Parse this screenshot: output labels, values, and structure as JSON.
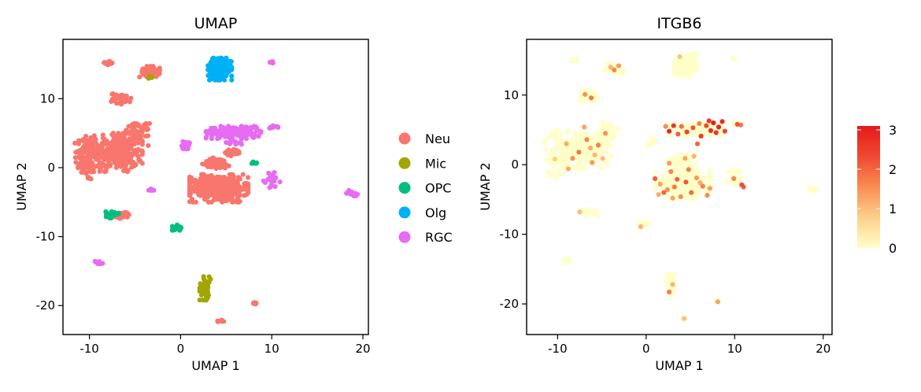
{
  "chart_data": [
    {
      "type": "scatter",
      "title": "UMAP",
      "xlabel": "UMAP 1",
      "ylabel": "UMAP 2",
      "xlim": [
        -12.9,
        20.6
      ],
      "ylim": [
        -24.2,
        18.6
      ],
      "xticks": [
        -10,
        0,
        10,
        20
      ],
      "yticks": [
        -20,
        -10,
        0,
        10
      ],
      "xtick_labels": [
        "-10",
        "0",
        "10",
        "20"
      ],
      "ytick_labels": [
        "-20",
        "-10",
        "0",
        "10"
      ],
      "grid": false,
      "legend": "right",
      "series": [
        {
          "name": "Neu",
          "color": "#F8766D",
          "clusters": [
            {
              "cx": -10.3,
              "cy": 1.5,
              "rx": 1.3,
              "ry": 3.6,
              "n": 90
            },
            {
              "cx": -7.2,
              "cy": 2.2,
              "rx": 3.0,
              "ry": 2.8,
              "n": 320
            },
            {
              "cx": -4.8,
              "cy": 4.8,
              "rx": 1.4,
              "ry": 1.6,
              "n": 80
            },
            {
              "cx": -6.5,
              "cy": 10.0,
              "rx": 1.1,
              "ry": 0.8,
              "n": 50
            },
            {
              "cx": -3.4,
              "cy": 13.9,
              "rx": 1.1,
              "ry": 0.8,
              "n": 45
            },
            {
              "cx": -8.0,
              "cy": 15.2,
              "rx": 0.5,
              "ry": 0.3,
              "n": 15
            },
            {
              "cx": 4.2,
              "cy": -3.0,
              "rx": 3.2,
              "ry": 2.0,
              "n": 420
            },
            {
              "cx": 4.0,
              "cy": 0.6,
              "rx": 1.6,
              "ry": 0.8,
              "n": 70
            },
            {
              "cx": 5.8,
              "cy": 2.2,
              "rx": 0.9,
              "ry": 0.5,
              "n": 25
            },
            {
              "cx": -6.4,
              "cy": -6.9,
              "rx": 0.9,
              "ry": 0.5,
              "n": 25
            },
            {
              "cx": 8.1,
              "cy": -19.6,
              "rx": 0.4,
              "ry": 0.2,
              "n": 8
            },
            {
              "cx": 4.4,
              "cy": -22.2,
              "rx": 0.4,
              "ry": 0.2,
              "n": 8
            }
          ]
        },
        {
          "name": "Mic",
          "color": "#A3A500",
          "clusters": [
            {
              "cx": 2.7,
              "cy": -17.5,
              "rx": 0.6,
              "ry": 1.7,
              "n": 70
            },
            {
              "cx": -3.4,
              "cy": 13.1,
              "rx": 0.3,
              "ry": 0.3,
              "n": 4
            }
          ]
        },
        {
          "name": "OPC",
          "color": "#00BF7D",
          "clusters": [
            {
              "cx": -7.5,
              "cy": -6.8,
              "rx": 0.7,
              "ry": 0.5,
              "n": 22
            },
            {
              "cx": -0.3,
              "cy": -8.7,
              "rx": 0.6,
              "ry": 0.4,
              "n": 20
            },
            {
              "cx": 8.1,
              "cy": 0.6,
              "rx": 0.3,
              "ry": 0.4,
              "n": 8
            }
          ]
        },
        {
          "name": "Olg",
          "color": "#00B0F6",
          "clusters": [
            {
              "cx": 4.3,
              "cy": 14.3,
              "rx": 1.3,
              "ry": 1.6,
              "n": 190
            }
          ]
        },
        {
          "name": "RGC",
          "color": "#E76BF3",
          "clusters": [
            {
              "cx": 5.8,
              "cy": 5.1,
              "rx": 3.0,
              "ry": 0.9,
              "n": 190
            },
            {
              "cx": 0.5,
              "cy": 3.3,
              "rx": 0.5,
              "ry": 0.6,
              "n": 22
            },
            {
              "cx": 10.2,
              "cy": 5.9,
              "rx": 0.5,
              "ry": 0.2,
              "n": 10
            },
            {
              "cx": 9.9,
              "cy": 15.3,
              "rx": 0.3,
              "ry": 0.2,
              "n": 6
            },
            {
              "cx": 10.0,
              "cy": -1.8,
              "rx": 0.9,
              "ry": 1.1,
              "n": 22
            },
            {
              "cx": 18.8,
              "cy": -3.7,
              "rx": 0.6,
              "ry": 0.4,
              "n": 15
            },
            {
              "cx": -9.0,
              "cy": -13.8,
              "rx": 0.5,
              "ry": 0.3,
              "n": 12
            },
            {
              "cx": -3.2,
              "cy": -3.2,
              "rx": 0.4,
              "ry": 0.2,
              "n": 8
            },
            {
              "cx": 5.9,
              "cy": 3.6,
              "rx": 0.9,
              "ry": 0.3,
              "n": 12
            }
          ]
        }
      ]
    },
    {
      "type": "scatter",
      "title": "ITGB6",
      "xlabel": "UMAP 1",
      "ylabel": "UMAP 2",
      "xlim": [
        -13.5,
        21.0
      ],
      "ylim": [
        -24.4,
        18.0
      ],
      "xticks": [
        -10,
        0,
        10,
        20
      ],
      "yticks": [
        -20,
        -10,
        0,
        10
      ],
      "xtick_labels": [
        "-10",
        "0",
        "10",
        "20"
      ],
      "ytick_labels": [
        "-20",
        "-10",
        "0",
        "10"
      ],
      "grid": false,
      "legend": "right",
      "colorbar": {
        "min": 0,
        "max": 3.1,
        "ticks": [
          0,
          1,
          2,
          3
        ],
        "tick_labels": [
          "0",
          "1",
          "2",
          "3"
        ],
        "colors": [
          "#FFFFC8",
          "#FDD08C",
          "#F98D52",
          "#EF4A32",
          "#E31A1C"
        ]
      },
      "background_clusters": [
        {
          "cx": -10.2,
          "cy": 1.5,
          "rx": 1.3,
          "ry": 3.4,
          "n": 60
        },
        {
          "cx": -7.0,
          "cy": 2.2,
          "rx": 3.0,
          "ry": 2.7,
          "n": 240
        },
        {
          "cx": -4.6,
          "cy": 4.7,
          "rx": 1.4,
          "ry": 1.5,
          "n": 60
        },
        {
          "cx": -6.4,
          "cy": 9.9,
          "rx": 1.1,
          "ry": 0.8,
          "n": 35
        },
        {
          "cx": -3.5,
          "cy": 13.8,
          "rx": 1.1,
          "ry": 0.8,
          "n": 35
        },
        {
          "cx": -8.0,
          "cy": 15.0,
          "rx": 0.5,
          "ry": 0.3,
          "n": 10
        },
        {
          "cx": 4.4,
          "cy": 14.3,
          "rx": 1.3,
          "ry": 1.6,
          "n": 120
        },
        {
          "cx": 5.6,
          "cy": 5.0,
          "rx": 3.0,
          "ry": 0.9,
          "n": 150
        },
        {
          "cx": 0.5,
          "cy": 3.3,
          "rx": 0.5,
          "ry": 0.6,
          "n": 18
        },
        {
          "cx": 10.0,
          "cy": 5.9,
          "rx": 0.5,
          "ry": 0.2,
          "n": 8
        },
        {
          "cx": 10.0,
          "cy": 15.2,
          "rx": 0.3,
          "ry": 0.2,
          "n": 5
        },
        {
          "cx": 4.2,
          "cy": -2.8,
          "rx": 3.1,
          "ry": 2.0,
          "n": 300
        },
        {
          "cx": 4.0,
          "cy": 0.6,
          "rx": 1.6,
          "ry": 0.8,
          "n": 50
        },
        {
          "cx": 10.0,
          "cy": -1.8,
          "rx": 0.9,
          "ry": 1.1,
          "n": 18
        },
        {
          "cx": 18.8,
          "cy": -3.5,
          "rx": 0.6,
          "ry": 0.4,
          "n": 12
        },
        {
          "cx": -6.5,
          "cy": -6.8,
          "rx": 1.2,
          "ry": 0.5,
          "n": 25
        },
        {
          "cx": -0.2,
          "cy": -8.6,
          "rx": 0.6,
          "ry": 0.4,
          "n": 15
        },
        {
          "cx": -9.0,
          "cy": -13.7,
          "rx": 0.5,
          "ry": 0.3,
          "n": 10
        },
        {
          "cx": 2.8,
          "cy": -17.4,
          "rx": 0.6,
          "ry": 1.7,
          "n": 50
        },
        {
          "cx": 8.1,
          "cy": -19.6,
          "rx": 0.3,
          "ry": 0.2,
          "n": 5
        },
        {
          "cx": 4.2,
          "cy": -22.1,
          "rx": 0.3,
          "ry": 0.2,
          "n": 4
        }
      ],
      "expressing_points": [
        {
          "x": 7.6,
          "y": 6.0,
          "v": 3.0
        },
        {
          "x": 8.2,
          "y": 5.4,
          "v": 2.9
        },
        {
          "x": 8.6,
          "y": 6.2,
          "v": 2.8
        },
        {
          "x": 2.6,
          "y": 4.8,
          "v": 2.9
        },
        {
          "x": 3.1,
          "y": 5.6,
          "v": 2.6
        },
        {
          "x": 4.6,
          "y": 4.7,
          "v": 2.4
        },
        {
          "x": 5.3,
          "y": 5.3,
          "v": 2.2
        },
        {
          "x": 6.2,
          "y": 4.1,
          "v": 2.5
        },
        {
          "x": 6.8,
          "y": 5.6,
          "v": 2.3
        },
        {
          "x": 7.3,
          "y": 4.9,
          "v": 2.7
        },
        {
          "x": 7.9,
          "y": 4.6,
          "v": 2.6
        },
        {
          "x": 5.8,
          "y": 3.0,
          "v": 2.0
        },
        {
          "x": 4.0,
          "y": 5.5,
          "v": 1.9
        },
        {
          "x": 3.6,
          "y": 4.4,
          "v": 2.1
        },
        {
          "x": 8.9,
          "y": 4.8,
          "v": 2.4
        },
        {
          "x": 6.0,
          "y": 5.9,
          "v": 1.7
        },
        {
          "x": 2.2,
          "y": 5.5,
          "v": 1.6
        },
        {
          "x": 7.1,
          "y": 6.3,
          "v": 2.6
        },
        {
          "x": 10.3,
          "y": 5.8,
          "v": 2.2
        },
        {
          "x": 10.7,
          "y": 5.7,
          "v": 1.8
        },
        {
          "x": 10.8,
          "y": -2.9,
          "v": 2.3
        },
        {
          "x": 11.0,
          "y": -3.2,
          "v": 2.1
        },
        {
          "x": 9.9,
          "y": -2.0,
          "v": 1.6
        },
        {
          "x": 1.0,
          "y": -2.0,
          "v": 2.1
        },
        {
          "x": 2.0,
          "y": -4.0,
          "v": 2.0
        },
        {
          "x": 3.2,
          "y": -3.2,
          "v": 1.8
        },
        {
          "x": 4.5,
          "y": -2.5,
          "v": 2.2
        },
        {
          "x": 5.1,
          "y": -4.0,
          "v": 1.9
        },
        {
          "x": 6.4,
          "y": -3.1,
          "v": 1.7
        },
        {
          "x": 2.8,
          "y": -1.0,
          "v": 1.6
        },
        {
          "x": 3.9,
          "y": -4.6,
          "v": 1.5
        },
        {
          "x": 5.7,
          "y": -1.9,
          "v": 1.4
        },
        {
          "x": 6.9,
          "y": -4.4,
          "v": 1.6
        },
        {
          "x": 1.6,
          "y": -2.8,
          "v": 1.3
        },
        {
          "x": 4.8,
          "y": -0.7,
          "v": 1.7
        },
        {
          "x": 3.5,
          "y": -2.1,
          "v": 2.0
        },
        {
          "x": 2.4,
          "y": -3.6,
          "v": 1.5
        },
        {
          "x": 6.1,
          "y": -2.6,
          "v": 1.2
        },
        {
          "x": 2.6,
          "y": 0.2,
          "v": 1.4
        },
        {
          "x": 4.4,
          "y": 0.9,
          "v": 1.3
        },
        {
          "x": 5.4,
          "y": 1.2,
          "v": 1.1
        },
        {
          "x": 1.4,
          "y": -4.3,
          "v": 1.2
        },
        {
          "x": 7.2,
          "y": -3.4,
          "v": 1.4
        },
        {
          "x": 3.0,
          "y": -4.8,
          "v": 1.3
        },
        {
          "x": -7.6,
          "y": 1.8,
          "v": 1.8
        },
        {
          "x": -6.7,
          "y": 3.6,
          "v": 1.6
        },
        {
          "x": -5.4,
          "y": 2.8,
          "v": 1.7
        },
        {
          "x": -8.3,
          "y": 0.9,
          "v": 1.5
        },
        {
          "x": -6.1,
          "y": 0.3,
          "v": 1.4
        },
        {
          "x": -9.0,
          "y": 3.0,
          "v": 1.2
        },
        {
          "x": -4.6,
          "y": 4.5,
          "v": 1.5
        },
        {
          "x": -7.0,
          "y": 5.4,
          "v": 1.3
        },
        {
          "x": -5.8,
          "y": 1.4,
          "v": 1.1
        },
        {
          "x": -8.8,
          "y": -0.6,
          "v": 1.2
        },
        {
          "x": -6.3,
          "y": 2.4,
          "v": 1.2
        },
        {
          "x": -4.9,
          "y": 0.9,
          "v": 1.0
        },
        {
          "x": -6.2,
          "y": 9.6,
          "v": 1.8
        },
        {
          "x": -6.9,
          "y": 10.1,
          "v": 1.5
        },
        {
          "x": -3.6,
          "y": 13.6,
          "v": 1.6
        },
        {
          "x": -3.1,
          "y": 14.2,
          "v": 1.4
        },
        {
          "x": -4.0,
          "y": 14.0,
          "v": 1.1
        },
        {
          "x": 2.6,
          "y": -18.3,
          "v": 1.7
        },
        {
          "x": 3.0,
          "y": -17.2,
          "v": 1.1
        },
        {
          "x": 8.1,
          "y": -19.7,
          "v": 1.3
        },
        {
          "x": 4.3,
          "y": -22.1,
          "v": 1.0
        },
        {
          "x": -0.6,
          "y": -8.9,
          "v": 1.1
        },
        {
          "x": -7.5,
          "y": -6.8,
          "v": 1.0
        },
        {
          "x": 3.8,
          "y": 15.5,
          "v": 0.9
        },
        {
          "x": -10.3,
          "y": 0.8,
          "v": 0.8
        }
      ]
    }
  ],
  "legend": [
    {
      "label": "Neu",
      "color": "#F8766D"
    },
    {
      "label": "Mic",
      "color": "#A3A500"
    },
    {
      "label": "OPC",
      "color": "#00BF7D"
    },
    {
      "label": "Olg",
      "color": "#00B0F6"
    },
    {
      "label": "RGC",
      "color": "#E76BF3"
    }
  ]
}
